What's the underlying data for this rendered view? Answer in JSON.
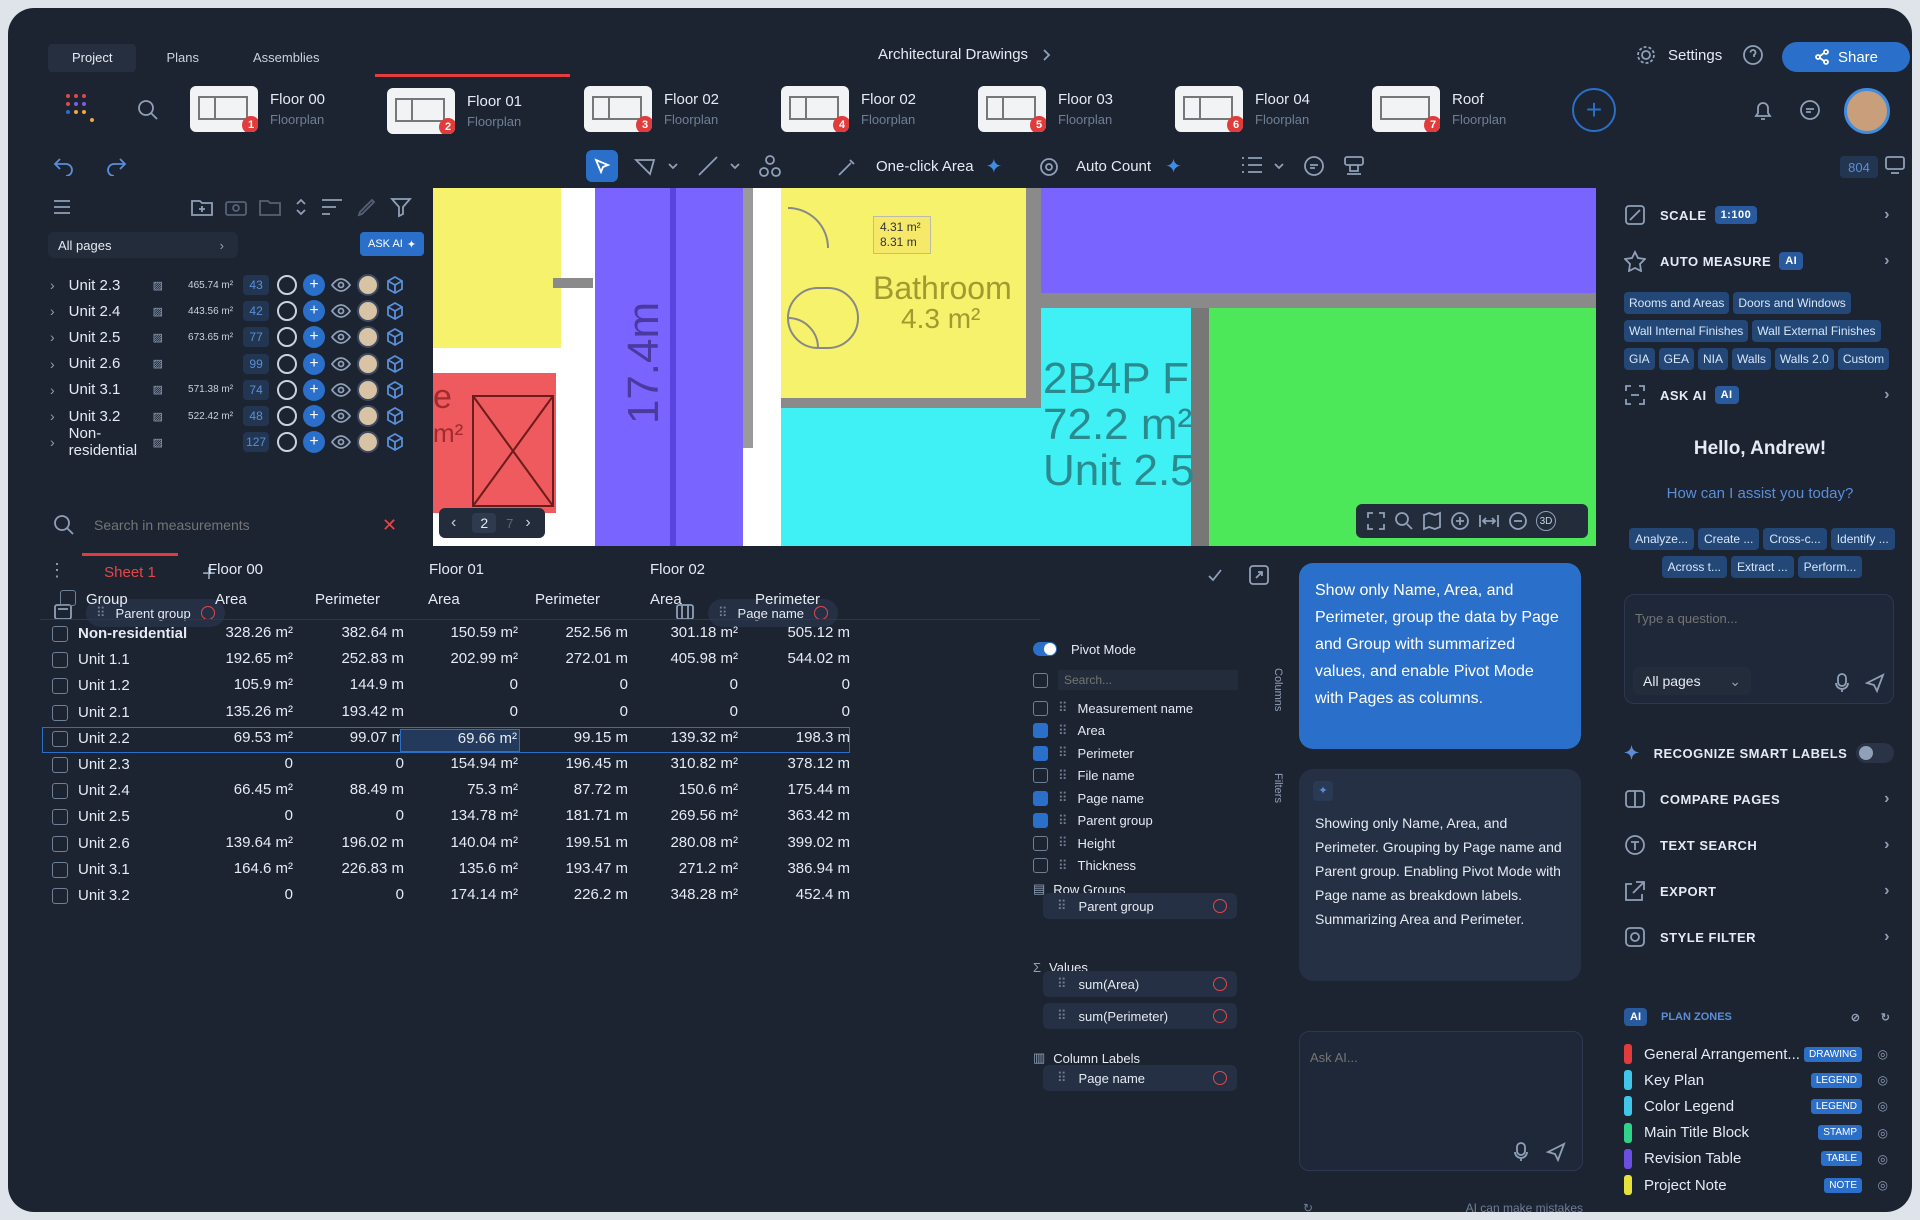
{
  "nav_tabs": [
    "Project",
    "Plans",
    "Assemblies"
  ],
  "drawing_title": "Architectural Drawings",
  "settings_label": "Settings",
  "share_label": "Share",
  "plans": [
    {
      "name": "Floor 00",
      "sub": "Floorplan",
      "num": "1"
    },
    {
      "name": "Floor 01",
      "sub": "Floorplan",
      "num": "2"
    },
    {
      "name": "Floor 02",
      "sub": "Floorplan",
      "num": "3"
    },
    {
      "name": "Floor 02",
      "sub": "Floorplan",
      "num": "4"
    },
    {
      "name": "Floor 03",
      "sub": "Floorplan",
      "num": "5"
    },
    {
      "name": "Floor 04",
      "sub": "Floorplan",
      "num": "6"
    },
    {
      "name": "Roof",
      "sub": "Floorplan",
      "num": "7"
    }
  ],
  "toolbar": {
    "one_click": "One-click Area",
    "auto_count": "Auto Count",
    "count_badge": "804"
  },
  "left": {
    "all_pages": "All pages",
    "ask_ai": "ASK AI",
    "search_placeholder": "Search in measurements",
    "units": [
      {
        "name": "Unit 2.3",
        "area": "465.74 m²",
        "count": "43"
      },
      {
        "name": "Unit 2.4",
        "area": "443.56 m²",
        "count": "42"
      },
      {
        "name": "Unit 2.5",
        "area": "673.65 m²",
        "count": "77"
      },
      {
        "name": "Unit 2.6",
        "area": "",
        "count": "99"
      },
      {
        "name": "Unit 3.1",
        "area": "571.38 m²",
        "count": "74"
      },
      {
        "name": "Unit 3.2",
        "area": "522.42 m²",
        "count": "48"
      },
      {
        "name": "Non-residential",
        "area": "",
        "count": "127"
      }
    ]
  },
  "canvas": {
    "bubble_area": "4.31 m²",
    "bubble_perim": "8.31 m",
    "bathroom": "Bathroom",
    "bathroom_area": "4.3 m²",
    "unit_type": "2B4P F",
    "unit_area": "72.2 m²",
    "unit_name": "Unit 2.5",
    "dimension": "17.4m",
    "partial_letter": "e",
    "partial_m2": "m²",
    "page_num": "2",
    "page_total": "7",
    "badge_3d": "3D"
  },
  "sheet": {
    "tab": "Sheet 1",
    "parent_group_chip": "Parent group",
    "page_name_chip": "Page name",
    "floors": [
      "Floor 00",
      "Floor 01",
      "Floor 02"
    ],
    "group_header": "Group",
    "col_area": "Area",
    "col_perimeter": "Perimeter",
    "rows": [
      {
        "name": "Non-residential",
        "v": [
          "328.26 m²",
          "382.64 m",
          "150.59 m²",
          "252.56 m",
          "301.18 m²",
          "505.12 m"
        ]
      },
      {
        "name": "Unit 1.1",
        "v": [
          "192.65 m²",
          "252.83 m",
          "202.99 m²",
          "272.01 m",
          "405.98 m²",
          "544.02 m"
        ]
      },
      {
        "name": "Unit 1.2",
        "v": [
          "105.9 m²",
          "144.9 m",
          "0",
          "0",
          "0",
          "0"
        ]
      },
      {
        "name": "Unit 2.1",
        "v": [
          "135.26 m²",
          "193.42 m",
          "0",
          "0",
          "0",
          "0"
        ]
      },
      {
        "name": "Unit 2.2",
        "v": [
          "69.53 m²",
          "99.07 m",
          "69.66 m²",
          "99.15 m",
          "139.32 m²",
          "198.3 m"
        ]
      },
      {
        "name": "Unit 2.3",
        "v": [
          "0",
          "0",
          "154.94 m²",
          "196.45 m",
          "310.82 m²",
          "378.12 m"
        ]
      },
      {
        "name": "Unit 2.4",
        "v": [
          "66.45 m²",
          "88.49 m",
          "75.3 m²",
          "87.72 m",
          "150.6 m²",
          "175.44 m"
        ]
      },
      {
        "name": "Unit 2.5",
        "v": [
          "0",
          "0",
          "134.78 m²",
          "181.71 m",
          "269.56 m²",
          "363.42 m"
        ]
      },
      {
        "name": "Unit 2.6",
        "v": [
          "139.64 m²",
          "196.02 m",
          "140.04 m²",
          "199.51 m",
          "280.08 m²",
          "399.02 m"
        ]
      },
      {
        "name": "Unit 3.1",
        "v": [
          "164.6 m²",
          "226.83 m",
          "135.6 m²",
          "193.47 m",
          "271.2 m²",
          "386.94 m"
        ]
      },
      {
        "name": "Unit 3.2",
        "v": [
          "0",
          "0",
          "174.14 m²",
          "226.2 m",
          "348.28 m²",
          "452.4 m"
        ]
      }
    ]
  },
  "pivot": {
    "mode_label": "Pivot Mode",
    "search_placeholder": "Search...",
    "columns_label": "Columns",
    "filters_label": "Filters",
    "fields": [
      {
        "label": "Measurement name",
        "on": false
      },
      {
        "label": "Area",
        "on": true
      },
      {
        "label": "Perimeter",
        "on": true
      },
      {
        "label": "File name",
        "on": false
      },
      {
        "label": "Page name",
        "on": true
      },
      {
        "label": "Parent group",
        "on": true
      },
      {
        "label": "Height",
        "on": false
      },
      {
        "label": "Thickness",
        "on": false
      }
    ],
    "row_groups": "Row Groups",
    "row_group_item": "Parent group",
    "values": "Values",
    "value_items": [
      "sum(Area)",
      "sum(Perimeter)"
    ],
    "column_labels": "Column Labels",
    "column_item": "Page name"
  },
  "chat": {
    "user_msg": "Show only Name, Area, and Perimeter, group the data by Page and Group with summarized values, and enable Pivot Mode with Pages as columns.",
    "ai_msg": "Showing only Name, Area, and Perimeter. Grouping by Page name and Parent group. Enabling Pivot Mode with Page name as breakdown labels. Summarizing Area and Perimeter.",
    "ask_placeholder": "Ask AI...",
    "disclaimer": "AI can make mistakes"
  },
  "right": {
    "scale": "SCALE",
    "scale_val": "1:100",
    "auto_measure": "AUTO MEASURE",
    "ai_pill": "AI",
    "tags": [
      "Rooms and Areas",
      "Doors and Windows",
      "Wall Internal Finishes",
      "Wall External Finishes",
      "GIA",
      "GEA",
      "NIA",
      "Walls",
      "Walls 2.0",
      "Custom"
    ],
    "ask_ai": "ASK AI",
    "hello": "Hello, Andrew!",
    "assist": "How can I assist you today?",
    "suggestions": [
      "Analyze...",
      "Create ...",
      "Cross-c...",
      "Identify ...",
      "Across t...",
      "Extract ...",
      "Perform..."
    ],
    "question_placeholder": "Type a question...",
    "all_pages": "All pages",
    "recognize": "RECOGNIZE SMART LABELS",
    "compare": "COMPARE PAGES",
    "text_search": "TEXT SEARCH",
    "export": "EXPORT",
    "style_filter": "STYLE FILTER",
    "plan_zones": "PLAN ZONES",
    "zones": [
      {
        "name": "General Arrangement...",
        "tag": "DRAWING",
        "color": "#e23b3b"
      },
      {
        "name": "Key Plan",
        "tag": "LEGEND",
        "color": "#3fc6e8"
      },
      {
        "name": "Color Legend",
        "tag": "LEGEND",
        "color": "#3fc6e8"
      },
      {
        "name": "Main Title Block",
        "tag": "STAMP",
        "color": "#2fd48a"
      },
      {
        "name": "Revision Table",
        "tag": "TABLE",
        "color": "#6a4fe0"
      },
      {
        "name": "Project Note",
        "tag": "NOTE",
        "color": "#e6e23b"
      }
    ]
  }
}
